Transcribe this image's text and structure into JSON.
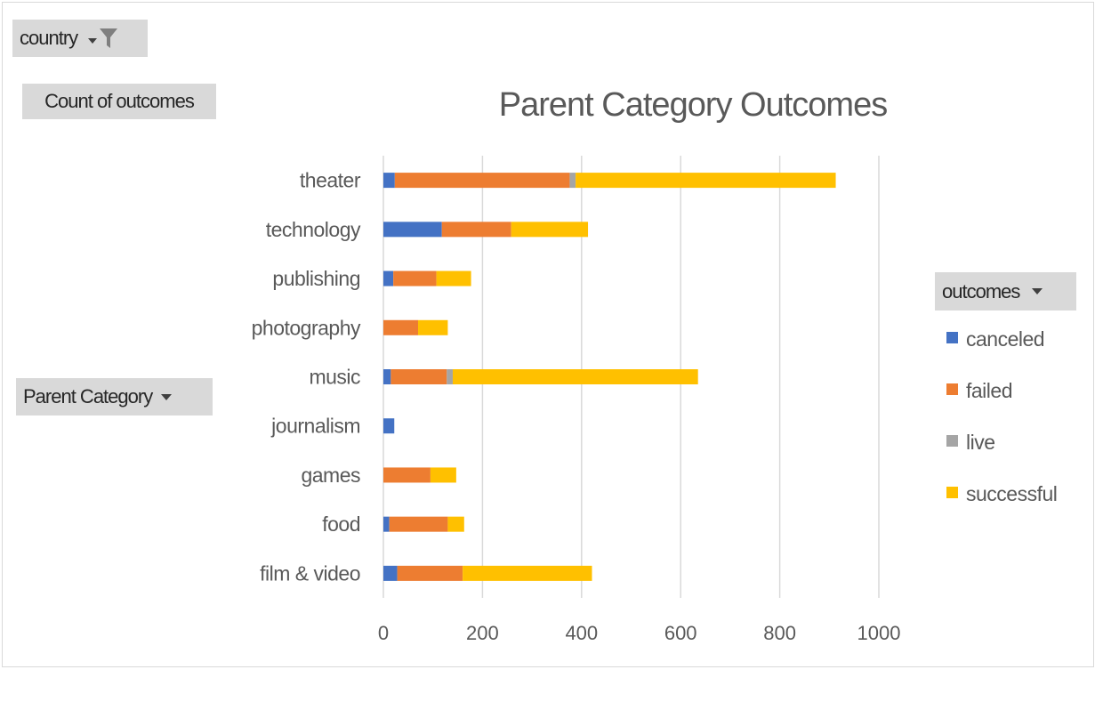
{
  "filters": {
    "country_label": "country",
    "values_label": "Count of outcomes",
    "row_field_label": "Parent Category",
    "legend_field_label": "outcomes"
  },
  "chart_data": {
    "type": "bar",
    "orientation": "horizontal",
    "stacked": true,
    "title": "Parent Category Outcomes",
    "xlabel": "",
    "ylabel": "",
    "xlim": [
      0,
      1000
    ],
    "xticks": [
      0,
      200,
      400,
      600,
      800,
      1000
    ],
    "grid": true,
    "legend_position": "right",
    "categories": [
      "theater",
      "technology",
      "publishing",
      "photography",
      "music",
      "journalism",
      "games",
      "food",
      "film & video"
    ],
    "series": [
      {
        "name": "canceled",
        "color": "#4472c4",
        "values": [
          23,
          118,
          20,
          0,
          15,
          22,
          0,
          12,
          28
        ]
      },
      {
        "name": "failed",
        "color": "#ed7d31",
        "values": [
          353,
          140,
          87,
          70,
          113,
          0,
          95,
          118,
          132
        ]
      },
      {
        "name": "live",
        "color": "#a5a5a5",
        "values": [
          12,
          0,
          0,
          0,
          12,
          0,
          0,
          0,
          0
        ]
      },
      {
        "name": "successful",
        "color": "#ffc000",
        "values": [
          525,
          155,
          70,
          60,
          495,
          0,
          52,
          33,
          261
        ]
      }
    ]
  }
}
